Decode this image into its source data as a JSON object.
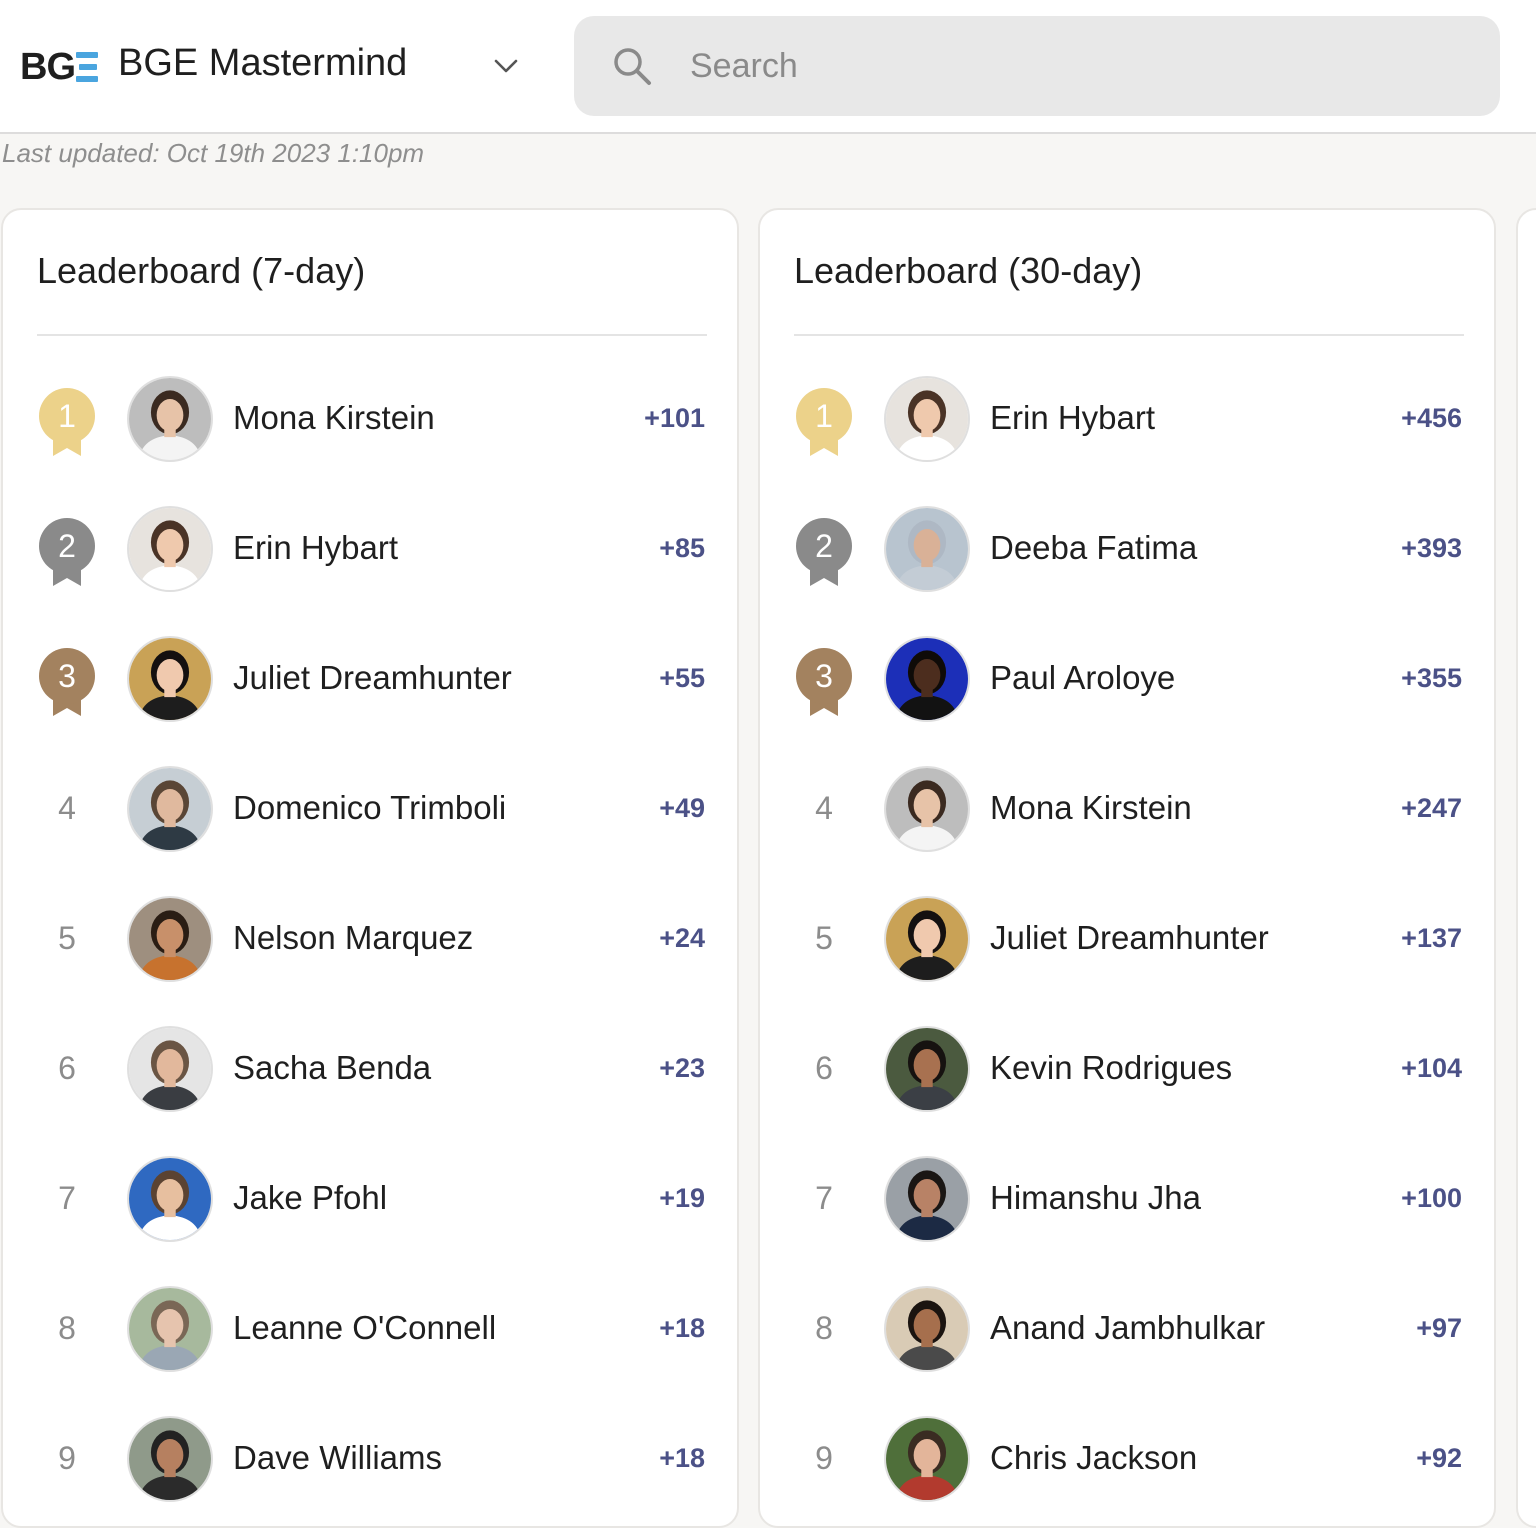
{
  "header": {
    "logo_text": "BG",
    "group_name": "BGE Mastermind",
    "dropdown_icon": "chevron-down-icon",
    "search_icon": "search-icon",
    "search_placeholder": "Search"
  },
  "last_updated": "Last updated: Oct 19th 2023 1:10pm",
  "colors": {
    "gold": "#ecd28a",
    "silver": "#8a8a8a",
    "bronze": "#a3825f",
    "points": "#4b5187",
    "logo_accent": "#4aa5df"
  },
  "leaderboards": [
    {
      "title": "Leaderboard (7-day)",
      "entries": [
        {
          "rank": "1",
          "name": "Mona Kirstein",
          "points": "+101",
          "medal": "gold",
          "avatar": {
            "bg": "#bdbdbd",
            "skin": "#e7c3a8",
            "hair": "#3b2a20",
            "shirt": "#f4f4f4"
          }
        },
        {
          "rank": "2",
          "name": "Erin Hybart",
          "points": "+85",
          "medal": "silver",
          "avatar": {
            "bg": "#e7e3de",
            "skin": "#efc9ad",
            "hair": "#4a3326",
            "shirt": "#ffffff"
          }
        },
        {
          "rank": "3",
          "name": "Juliet Dreamhunter",
          "points": "+55",
          "medal": "bronze",
          "avatar": {
            "bg": "#c9a256",
            "skin": "#f0c9ae",
            "hair": "#141010",
            "shirt": "#1d1d1d"
          }
        },
        {
          "rank": "4",
          "name": "Domenico Trimboli",
          "points": "+49",
          "medal": "",
          "avatar": {
            "bg": "#c6ced4",
            "skin": "#e0b99e",
            "hair": "#5a4636",
            "shirt": "#2e3a44"
          }
        },
        {
          "rank": "5",
          "name": "Nelson Marquez",
          "points": "+24",
          "medal": "",
          "avatar": {
            "bg": "#9e8f7f",
            "skin": "#c8906a",
            "hair": "#2a1d14",
            "shirt": "#c7722e"
          }
        },
        {
          "rank": "6",
          "name": "Sacha Benda",
          "points": "+23",
          "medal": "",
          "avatar": {
            "bg": "#e5e5e5",
            "skin": "#e2b89c",
            "hair": "#6a5544",
            "shirt": "#3a3d42"
          }
        },
        {
          "rank": "7",
          "name": "Jake Pfohl",
          "points": "+19",
          "medal": "",
          "avatar": {
            "bg": "#2f69c1",
            "skin": "#e7bf9f",
            "hair": "#5b4332",
            "shirt": "#ffffff"
          }
        },
        {
          "rank": "8",
          "name": "Leanne O'Connell",
          "points": "+18",
          "medal": "",
          "avatar": {
            "bg": "#a7b99d",
            "skin": "#e6c4ae",
            "hair": "#7a6756",
            "shirt": "#9aa7b4"
          }
        },
        {
          "rank": "9",
          "name": "Dave Williams",
          "points": "+18",
          "medal": "",
          "avatar": {
            "bg": "#8f9a8a",
            "skin": "#b68060",
            "hair": "#222222",
            "shirt": "#2b2b2b"
          }
        }
      ]
    },
    {
      "title": "Leaderboard (30-day)",
      "entries": [
        {
          "rank": "1",
          "name": "Erin Hybart",
          "points": "+456",
          "medal": "gold",
          "avatar": {
            "bg": "#e7e3de",
            "skin": "#efc9ad",
            "hair": "#4a3326",
            "shirt": "#ffffff"
          }
        },
        {
          "rank": "2",
          "name": "Deeba Fatima",
          "points": "+393",
          "medal": "silver",
          "avatar": {
            "bg": "#b8c4cf",
            "skin": "#d9b197",
            "hair": "#aeb8c4",
            "shirt": "#c3ccd5"
          }
        },
        {
          "rank": "3",
          "name": "Paul Aroloye",
          "points": "+355",
          "medal": "bronze",
          "avatar": {
            "bg": "#1c2fb8",
            "skin": "#4c2d1e",
            "hair": "#0f0b08",
            "shirt": "#121212"
          }
        },
        {
          "rank": "4",
          "name": "Mona Kirstein",
          "points": "+247",
          "medal": "",
          "avatar": {
            "bg": "#bdbdbd",
            "skin": "#e7c3a8",
            "hair": "#3b2a20",
            "shirt": "#f4f4f4"
          }
        },
        {
          "rank": "5",
          "name": "Juliet Dreamhunter",
          "points": "+137",
          "medal": "",
          "avatar": {
            "bg": "#c9a256",
            "skin": "#f0c9ae",
            "hair": "#141010",
            "shirt": "#1d1d1d"
          }
        },
        {
          "rank": "6",
          "name": "Kevin Rodrigues",
          "points": "+104",
          "medal": "",
          "avatar": {
            "bg": "#4b5a3f",
            "skin": "#a87150",
            "hair": "#161210",
            "shirt": "#3b3f45"
          }
        },
        {
          "rank": "7",
          "name": "Himanshu Jha",
          "points": "+100",
          "medal": "",
          "avatar": {
            "bg": "#9aa0a6",
            "skin": "#b88266",
            "hair": "#1a1614",
            "shirt": "#1c2a44"
          }
        },
        {
          "rank": "8",
          "name": "Anand Jambhulkar",
          "points": "+97",
          "medal": "",
          "avatar": {
            "bg": "#d9cbb5",
            "skin": "#a66f4d",
            "hair": "#1b1410",
            "shirt": "#4a4a4a"
          }
        },
        {
          "rank": "9",
          "name": "Chris Jackson",
          "points": "+92",
          "medal": "",
          "avatar": {
            "bg": "#4f6f3a",
            "skin": "#e3b59a",
            "hair": "#3a2c22",
            "shirt": "#b23a2e"
          }
        }
      ]
    }
  ]
}
